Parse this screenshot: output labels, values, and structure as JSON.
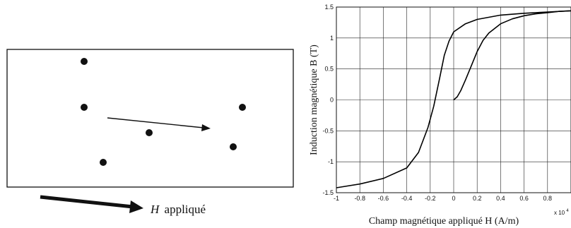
{
  "left_panel": {
    "arrow_label_symbol": "H",
    "arrow_label_text": "appliqué"
  },
  "chart_data": {
    "type": "line",
    "xlabel": "Champ magnétique appliqué H (A/m)",
    "ylabel": "Induction magnétique B (T)",
    "x_scale_label": "x 10",
    "x_scale_exponent": "4",
    "xlim": [
      -1,
      1
    ],
    "ylim": [
      -1.5,
      1.5
    ],
    "grid": true,
    "x_ticks": [
      "-1",
      "-0.8",
      "-0.6",
      "-0.4",
      "-0.2",
      "0",
      "0.2",
      "0.4",
      "0.6",
      "0.8"
    ],
    "y_ticks": [
      "1.5",
      "1",
      "0.5",
      "0",
      "-0.5",
      "-1",
      "-1.5"
    ],
    "series": [
      {
        "points": [
          [
            -1.0,
            -1.42
          ],
          [
            -0.8,
            -1.36
          ],
          [
            -0.6,
            -1.27
          ],
          [
            -0.4,
            -1.1
          ],
          [
            -0.3,
            -0.85
          ],
          [
            -0.22,
            -0.45
          ],
          [
            -0.17,
            -0.1
          ],
          [
            -0.12,
            0.35
          ],
          [
            -0.08,
            0.72
          ],
          [
            -0.04,
            0.95
          ],
          [
            0.0,
            1.1
          ],
          [
            0.1,
            1.23
          ],
          [
            0.2,
            1.3
          ],
          [
            0.4,
            1.37
          ],
          [
            0.6,
            1.4
          ],
          [
            0.8,
            1.42
          ],
          [
            1.0,
            1.44
          ]
        ]
      },
      {
        "points": [
          [
            0.0,
            0.0
          ],
          [
            0.03,
            0.05
          ],
          [
            0.06,
            0.15
          ],
          [
            0.1,
            0.32
          ],
          [
            0.15,
            0.55
          ],
          [
            0.2,
            0.78
          ],
          [
            0.25,
            0.96
          ],
          [
            0.3,
            1.08
          ],
          [
            0.4,
            1.23
          ],
          [
            0.5,
            1.31
          ],
          [
            0.6,
            1.36
          ],
          [
            0.7,
            1.39
          ],
          [
            0.8,
            1.41
          ],
          [
            0.9,
            1.43
          ],
          [
            1.0,
            1.44
          ]
        ]
      }
    ]
  }
}
